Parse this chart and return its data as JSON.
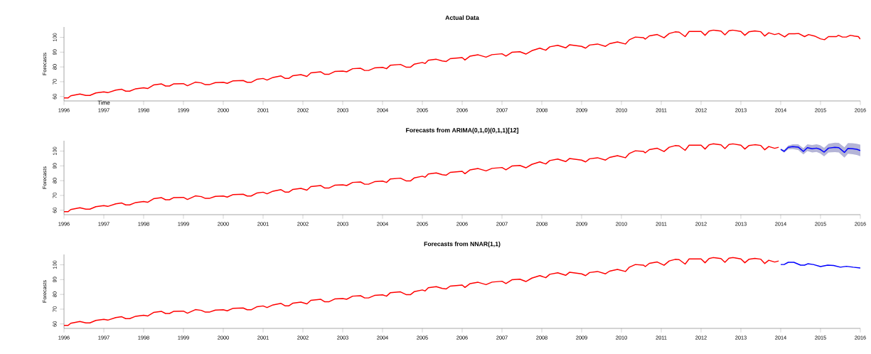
{
  "chart_data": [
    {
      "type": "line",
      "title": "Actual Data",
      "xlabel": "Time",
      "ylabel": "Forecasts",
      "xlim": [
        1996,
        2016
      ],
      "ylim": [
        57,
        107
      ],
      "xticks": [
        1996,
        1997,
        1998,
        1999,
        2000,
        2001,
        2002,
        2003,
        2004,
        2005,
        2006,
        2007,
        2008,
        2009,
        2010,
        2011,
        2012,
        2013,
        2014,
        2015,
        2016
      ],
      "yticks": [
        60,
        70,
        80,
        90,
        100
      ],
      "series": [
        {
          "color": "#ff0000",
          "x": [
            1996.0,
            1996.1,
            1996.17,
            1996.4,
            1996.55,
            1996.65,
            1996.8,
            1997.0,
            1997.1,
            1997.3,
            1997.45,
            1997.55,
            1997.65,
            1997.8,
            1998.0,
            1998.1,
            1998.25,
            1998.45,
            1998.55,
            1998.65,
            1998.75,
            1999.0,
            1999.1,
            1999.3,
            1999.45,
            1999.55,
            1999.65,
            1999.8,
            2000.0,
            2000.1,
            2000.25,
            2000.5,
            2000.6,
            2000.7,
            2000.85,
            2001.0,
            2001.1,
            2001.25,
            2001.45,
            2001.55,
            2001.65,
            2001.75,
            2001.95,
            2002.1,
            2002.2,
            2002.45,
            2002.55,
            2002.65,
            2002.8,
            2003.0,
            2003.1,
            2003.25,
            2003.45,
            2003.55,
            2003.65,
            2003.8,
            2004.0,
            2004.1,
            2004.2,
            2004.45,
            2004.6,
            2004.7,
            2004.8,
            2005.0,
            2005.07,
            2005.15,
            2005.35,
            2005.5,
            2005.6,
            2005.7,
            2006.0,
            2006.07,
            2006.2,
            2006.4,
            2006.6,
            2006.75,
            2007.0,
            2007.1,
            2007.25,
            2007.45,
            2007.6,
            2007.75,
            2007.95,
            2008.1,
            2008.2,
            2008.4,
            2008.6,
            2008.7,
            2009.0,
            2009.1,
            2009.2,
            2009.4,
            2009.6,
            2009.7,
            2009.9,
            2010.1,
            2010.2,
            2010.35,
            2010.55,
            2010.6,
            2010.7,
            2010.9,
            2011.07,
            2011.2,
            2011.35,
            2011.45,
            2011.6,
            2011.7,
            2012.0,
            2012.1,
            2012.2,
            2012.3,
            2012.5,
            2012.6,
            2012.7,
            2012.8,
            2013.0,
            2013.1,
            2013.2,
            2013.35,
            2013.5,
            2013.6,
            2013.7,
            2013.85,
            2013.95,
            2014.1,
            2014.2,
            2014.35,
            2014.45,
            2014.6,
            2014.7,
            2014.85,
            2015.0,
            2015.1,
            2015.2,
            2015.4,
            2015.45,
            2015.55,
            2015.65,
            2015.75,
            2015.85,
            2015.95,
            2016.0
          ],
          "values": [
            59.0,
            59.0,
            60.5,
            61.7,
            60.7,
            60.7,
            62.4,
            63.1,
            62.6,
            64.3,
            64.9,
            63.6,
            63.6,
            65.2,
            65.9,
            65.4,
            67.8,
            68.5,
            67.1,
            67.1,
            68.5,
            68.7,
            67.3,
            69.7,
            69.2,
            68.0,
            68.0,
            69.4,
            69.6,
            68.9,
            70.6,
            70.8,
            69.6,
            69.6,
            71.7,
            72.2,
            71.1,
            72.9,
            73.9,
            72.3,
            72.3,
            74.1,
            74.8,
            73.6,
            76.0,
            76.7,
            75.0,
            75.0,
            76.9,
            77.2,
            76.7,
            78.8,
            79.1,
            77.6,
            77.6,
            79.3,
            79.7,
            78.8,
            81.2,
            81.7,
            79.8,
            79.8,
            81.9,
            83.0,
            82.3,
            84.5,
            85.2,
            84.0,
            83.7,
            85.6,
            86.3,
            84.7,
            87.3,
            88.2,
            86.6,
            88.3,
            88.9,
            87.3,
            89.9,
            90.3,
            88.7,
            91.0,
            92.7,
            91.3,
            93.6,
            94.6,
            92.9,
            95.0,
            93.9,
            92.7,
            94.8,
            95.5,
            93.9,
            95.7,
            96.9,
            95.5,
            98.4,
            100.2,
            99.8,
            98.8,
            101.0,
            101.9,
            99.7,
            102.6,
            103.7,
            103.5,
            100.5,
            104.0,
            104.0,
            101.4,
            104.2,
            104.9,
            104.2,
            101.7,
            104.5,
            104.9,
            104.0,
            101.4,
            103.7,
            104.3,
            103.8,
            100.9,
            103.1,
            101.9,
            102.6,
            100.3,
            102.4,
            102.4,
            102.6,
            100.5,
            101.9,
            100.9,
            99.0,
            98.4,
            100.5,
            100.5,
            101.4,
            100.2,
            100.2,
            101.4,
            100.9,
            100.5,
            98.8
          ]
        }
      ]
    },
    {
      "type": "line",
      "title": "Forecasts from ARIMA(0,1,0)(0,1,1)[12]",
      "ylabel": "Forecasts",
      "xlim": [
        1996,
        2016
      ],
      "ylim": [
        57,
        107
      ],
      "xticks": [
        1996,
        1997,
        1998,
        1999,
        2000,
        2001,
        2002,
        2003,
        2004,
        2005,
        2006,
        2007,
        2008,
        2009,
        2010,
        2011,
        2012,
        2013,
        2014,
        2015,
        2016
      ],
      "yticks": [
        60,
        70,
        80,
        90,
        100
      ],
      "series": [
        {
          "color": "#ff0000",
          "x": [
            1996.0,
            1996.1,
            1996.17,
            1996.4,
            1996.55,
            1996.65,
            1996.8,
            1997.0,
            1997.1,
            1997.3,
            1997.45,
            1997.55,
            1997.65,
            1997.8,
            1998.0,
            1998.1,
            1998.25,
            1998.45,
            1998.55,
            1998.65,
            1998.75,
            1999.0,
            1999.1,
            1999.3,
            1999.45,
            1999.55,
            1999.65,
            1999.8,
            2000.0,
            2000.1,
            2000.25,
            2000.5,
            2000.6,
            2000.7,
            2000.85,
            2001.0,
            2001.1,
            2001.25,
            2001.45,
            2001.55,
            2001.65,
            2001.75,
            2001.95,
            2002.1,
            2002.2,
            2002.45,
            2002.55,
            2002.65,
            2002.8,
            2003.0,
            2003.1,
            2003.25,
            2003.45,
            2003.55,
            2003.65,
            2003.8,
            2004.0,
            2004.1,
            2004.2,
            2004.45,
            2004.6,
            2004.7,
            2004.8,
            2005.0,
            2005.07,
            2005.15,
            2005.35,
            2005.5,
            2005.6,
            2005.7,
            2006.0,
            2006.07,
            2006.2,
            2006.4,
            2006.6,
            2006.75,
            2007.0,
            2007.1,
            2007.25,
            2007.45,
            2007.6,
            2007.75,
            2007.95,
            2008.1,
            2008.2,
            2008.4,
            2008.6,
            2008.7,
            2009.0,
            2009.1,
            2009.2,
            2009.4,
            2009.6,
            2009.7,
            2009.9,
            2010.1,
            2010.2,
            2010.35,
            2010.55,
            2010.6,
            2010.7,
            2010.9,
            2011.07,
            2011.2,
            2011.35,
            2011.45,
            2011.6,
            2011.7,
            2012.0,
            2012.1,
            2012.2,
            2012.3,
            2012.5,
            2012.6,
            2012.7,
            2012.8,
            2013.0,
            2013.1,
            2013.2,
            2013.35,
            2013.5,
            2013.6,
            2013.7,
            2013.85,
            2013.95
          ],
          "values": [
            59.0,
            59.0,
            60.5,
            61.7,
            60.7,
            60.7,
            62.4,
            63.1,
            62.6,
            64.3,
            64.9,
            63.6,
            63.6,
            65.2,
            65.9,
            65.4,
            67.8,
            68.5,
            67.1,
            67.1,
            68.5,
            68.7,
            67.3,
            69.7,
            69.2,
            68.0,
            68.0,
            69.4,
            69.6,
            68.9,
            70.6,
            70.8,
            69.6,
            69.6,
            71.7,
            72.2,
            71.1,
            72.9,
            73.9,
            72.3,
            72.3,
            74.1,
            74.8,
            73.6,
            76.0,
            76.7,
            75.0,
            75.0,
            76.9,
            77.2,
            76.7,
            78.8,
            79.1,
            77.6,
            77.6,
            79.3,
            79.7,
            78.8,
            81.2,
            81.7,
            79.8,
            79.8,
            81.9,
            83.0,
            82.3,
            84.5,
            85.2,
            84.0,
            83.7,
            85.6,
            86.3,
            84.7,
            87.3,
            88.2,
            86.6,
            88.3,
            88.9,
            87.3,
            89.9,
            90.3,
            88.7,
            91.0,
            92.7,
            91.3,
            93.6,
            94.6,
            92.9,
            95.0,
            93.9,
            92.7,
            94.8,
            95.5,
            93.9,
            95.7,
            96.9,
            95.5,
            98.4,
            100.2,
            99.8,
            98.8,
            101.0,
            101.9,
            99.7,
            102.6,
            103.7,
            103.5,
            100.5,
            104.0,
            104.0,
            101.4,
            104.2,
            104.9,
            104.2,
            101.7,
            104.5,
            104.9,
            104.0,
            101.4,
            103.7,
            104.3,
            103.8,
            100.9,
            103.1,
            101.9,
            102.6
          ]
        },
        {
          "color": "#0000ff",
          "x": [
            2014.0,
            2014.085,
            2014.19,
            2014.3,
            2014.44,
            2014.57,
            2014.67,
            2014.79,
            2014.9,
            2014.99,
            2015.09,
            2015.2,
            2015.36,
            2015.46,
            2015.6,
            2015.69,
            2015.81,
            2015.91,
            2016.0
          ],
          "values": [
            101.2,
            99.8,
            102.5,
            103.0,
            102.7,
            99.8,
            102.3,
            101.6,
            102.0,
            101.2,
            99.3,
            102.0,
            102.5,
            102.3,
            99.1,
            101.8,
            101.6,
            101.2,
            100.4
          ],
          "upper": [
            101.7,
            100.7,
            103.8,
            104.6,
            104.6,
            101.9,
            104.6,
            104.1,
            104.6,
            104.0,
            102.2,
            105.0,
            105.7,
            105.6,
            102.6,
            105.4,
            105.3,
            105.0,
            104.3
          ],
          "lower": [
            100.7,
            98.9,
            101.2,
            101.4,
            100.8,
            97.7,
            100.0,
            99.1,
            99.4,
            98.4,
            96.4,
            99.0,
            99.3,
            99.0,
            95.6,
            98.2,
            97.9,
            97.4,
            96.5
          ]
        }
      ]
    },
    {
      "type": "line",
      "title": "Forecasts from NNAR(1,1)",
      "ylabel": "Forecasts",
      "xlim": [
        1996,
        2016
      ],
      "ylim": [
        57,
        107
      ],
      "xticks": [
        1996,
        1997,
        1998,
        1999,
        2000,
        2001,
        2002,
        2003,
        2004,
        2005,
        2006,
        2007,
        2008,
        2009,
        2010,
        2011,
        2012,
        2013,
        2014,
        2015,
        2016
      ],
      "yticks": [
        60,
        70,
        80,
        90,
        100
      ],
      "series": [
        {
          "color": "#ff0000",
          "x": [
            1996.0,
            1996.1,
            1996.17,
            1996.4,
            1996.55,
            1996.65,
            1996.8,
            1997.0,
            1997.1,
            1997.3,
            1997.45,
            1997.55,
            1997.65,
            1997.8,
            1998.0,
            1998.1,
            1998.25,
            1998.45,
            1998.55,
            1998.65,
            1998.75,
            1999.0,
            1999.1,
            1999.3,
            1999.45,
            1999.55,
            1999.65,
            1999.8,
            2000.0,
            2000.1,
            2000.25,
            2000.5,
            2000.6,
            2000.7,
            2000.85,
            2001.0,
            2001.1,
            2001.25,
            2001.45,
            2001.55,
            2001.65,
            2001.75,
            2001.95,
            2002.1,
            2002.2,
            2002.45,
            2002.55,
            2002.65,
            2002.8,
            2003.0,
            2003.1,
            2003.25,
            2003.45,
            2003.55,
            2003.65,
            2003.8,
            2004.0,
            2004.1,
            2004.2,
            2004.45,
            2004.6,
            2004.7,
            2004.8,
            2005.0,
            2005.07,
            2005.15,
            2005.35,
            2005.5,
            2005.6,
            2005.7,
            2006.0,
            2006.07,
            2006.2,
            2006.4,
            2006.6,
            2006.75,
            2007.0,
            2007.1,
            2007.25,
            2007.45,
            2007.6,
            2007.75,
            2007.95,
            2008.1,
            2008.2,
            2008.4,
            2008.6,
            2008.7,
            2009.0,
            2009.1,
            2009.2,
            2009.4,
            2009.6,
            2009.7,
            2009.9,
            2010.1,
            2010.2,
            2010.35,
            2010.55,
            2010.6,
            2010.7,
            2010.9,
            2011.07,
            2011.2,
            2011.35,
            2011.45,
            2011.6,
            2011.7,
            2012.0,
            2012.1,
            2012.2,
            2012.3,
            2012.5,
            2012.6,
            2012.7,
            2012.8,
            2013.0,
            2013.1,
            2013.2,
            2013.35,
            2013.5,
            2013.6,
            2013.7,
            2013.85,
            2013.95
          ],
          "values": [
            59.0,
            59.0,
            60.5,
            61.7,
            60.7,
            60.7,
            62.4,
            63.1,
            62.6,
            64.3,
            64.9,
            63.6,
            63.6,
            65.2,
            65.9,
            65.4,
            67.8,
            68.5,
            67.1,
            67.1,
            68.5,
            68.7,
            67.3,
            69.7,
            69.2,
            68.0,
            68.0,
            69.4,
            69.6,
            68.9,
            70.6,
            70.8,
            69.6,
            69.6,
            71.7,
            72.2,
            71.1,
            72.9,
            73.9,
            72.3,
            72.3,
            74.1,
            74.8,
            73.6,
            76.0,
            76.7,
            75.0,
            75.0,
            76.9,
            77.2,
            76.7,
            78.8,
            79.1,
            77.6,
            77.6,
            79.3,
            79.7,
            78.8,
            81.2,
            81.7,
            79.8,
            79.8,
            81.9,
            83.0,
            82.3,
            84.5,
            85.2,
            84.0,
            83.7,
            85.6,
            86.3,
            84.7,
            87.3,
            88.2,
            86.6,
            88.3,
            88.9,
            87.3,
            89.9,
            90.3,
            88.7,
            91.0,
            92.7,
            91.3,
            93.6,
            94.6,
            92.9,
            95.0,
            93.9,
            92.7,
            94.8,
            95.5,
            93.9,
            95.7,
            96.9,
            95.5,
            98.4,
            100.2,
            99.8,
            98.8,
            101.0,
            101.9,
            99.7,
            102.6,
            103.7,
            103.5,
            100.5,
            104.0,
            104.0,
            101.4,
            104.2,
            104.9,
            104.2,
            101.7,
            104.5,
            104.9,
            104.0,
            101.4,
            103.7,
            104.3,
            103.8,
            100.9,
            103.1,
            101.9,
            102.6
          ]
        },
        {
          "color": "#0000ff",
          "x": [
            2014.0,
            2014.085,
            2014.19,
            2014.33,
            2014.5,
            2014.6,
            2014.68,
            2014.82,
            2015.0,
            2015.18,
            2015.33,
            2015.5,
            2015.65,
            2015.82,
            2016.0
          ],
          "values": [
            100.2,
            100.2,
            101.7,
            101.7,
            99.8,
            99.8,
            100.7,
            100.2,
            98.8,
            99.8,
            99.5,
            98.4,
            99.0,
            98.4,
            97.9
          ]
        }
      ]
    }
  ]
}
